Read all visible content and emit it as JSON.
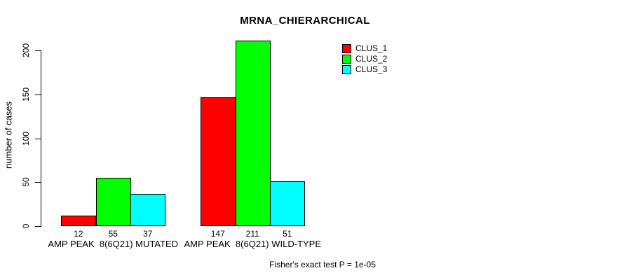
{
  "chart_data": {
    "type": "bar",
    "title": "MRNA_CHIERARCHICAL",
    "xlabel": "",
    "ylabel": "number of cases",
    "categories": [
      "AMP PEAK  8(6Q21) MUTATED",
      "AMP PEAK  8(6Q21) WILD-TYPE"
    ],
    "series": [
      {
        "name": "CLUS_1",
        "color": "#FF0000",
        "values": [
          12,
          147
        ]
      },
      {
        "name": "CLUS_2",
        "color": "#00FF00",
        "values": [
          55,
          211
        ]
      },
      {
        "name": "CLUS_3",
        "color": "#00FFFF",
        "values": [
          37,
          51
        ]
      }
    ],
    "bar_value_labels": [
      [
        "12",
        "55",
        "37"
      ],
      [
        "147",
        "211",
        "51"
      ]
    ],
    "yticks": [
      0,
      50,
      100,
      150,
      200
    ],
    "ylim": [
      0,
      211
    ],
    "grid": false,
    "legend_position": "top-right",
    "annotation": "Fisher's exact test P = 1e-05"
  }
}
